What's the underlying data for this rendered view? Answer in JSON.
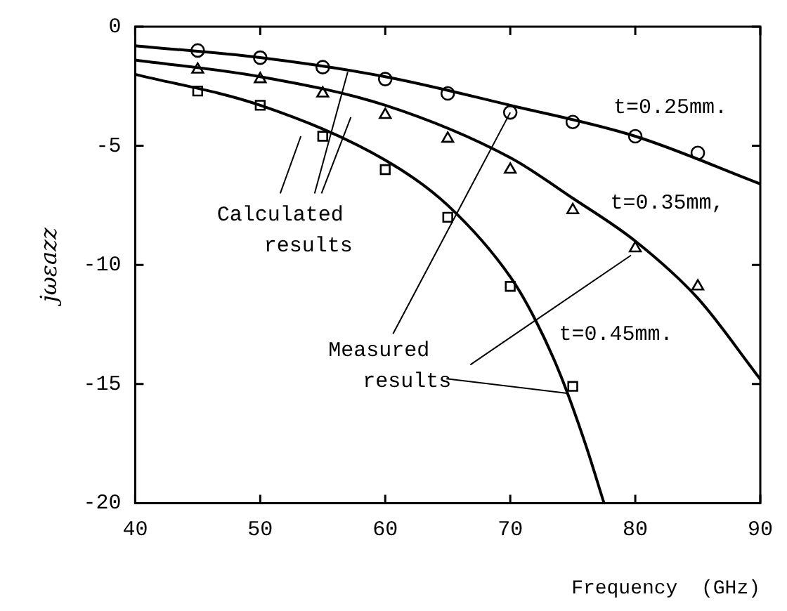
{
  "chart_data": {
    "type": "line",
    "xlabel": "Frequency  (GHz)",
    "ylabel": "jωεazz",
    "xlim": [
      40,
      90
    ],
    "xticks": [
      40,
      50,
      60,
      70,
      80,
      90
    ],
    "ylim": [
      -20,
      0
    ],
    "yticks": [
      -20,
      -15,
      -10,
      -5,
      0
    ],
    "grid": false,
    "legend": false,
    "series": [
      {
        "name": "t=0.25mm.",
        "type": "line",
        "color": "#000000",
        "marker": "none",
        "x": [
          40,
          50,
          60,
          70,
          80,
          90
        ],
        "values": [
          -0.8,
          -1.3,
          -2.1,
          -3.3,
          -4.6,
          -6.6
        ]
      },
      {
        "name": "t=0.35mm,",
        "type": "line",
        "color": "#000000",
        "marker": "none",
        "x": [
          40,
          50,
          60,
          70,
          75,
          80,
          85,
          90
        ],
        "values": [
          -1.4,
          -2.1,
          -3.3,
          -5.5,
          -7.2,
          -9.0,
          -11.4,
          -14.8
        ]
      },
      {
        "name": "t=0.45mm.",
        "type": "line",
        "color": "#000000",
        "marker": "none",
        "x": [
          40,
          50,
          60,
          65,
          70,
          72,
          74,
          76,
          77.5
        ],
        "values": [
          -2.0,
          -3.3,
          -5.6,
          -7.5,
          -10.5,
          -12.3,
          -14.6,
          -17.5,
          -20
        ]
      },
      {
        "type": "scatter",
        "color": "#000000",
        "marker": "circle",
        "x": [
          45,
          50,
          55,
          60,
          65,
          70,
          75,
          80,
          85
        ],
        "values": [
          -1.0,
          -1.3,
          -1.7,
          -2.2,
          -2.8,
          -3.6,
          -4.0,
          -4.6,
          -5.3
        ]
      },
      {
        "type": "scatter",
        "color": "#000000",
        "marker": "triangle",
        "x": [
          45,
          50,
          55,
          60,
          65,
          70,
          75,
          80,
          85
        ],
        "values": [
          -1.8,
          -2.2,
          -2.8,
          -3.7,
          -4.7,
          -6.0,
          -7.7,
          -9.3,
          -10.9
        ]
      },
      {
        "type": "scatter",
        "color": "#000000",
        "marker": "square",
        "x": [
          45,
          50,
          55,
          60,
          65,
          70,
          75
        ],
        "values": [
          -2.7,
          -3.3,
          -4.6,
          -6.0,
          -8.0,
          -10.9,
          -15.1
        ]
      }
    ],
    "annotations": [
      {
        "text": "Calculated results",
        "x": 57,
        "y": -1.9
      },
      {
        "text": "Measured results",
        "x": 70,
        "y": -3.6
      }
    ]
  }
}
